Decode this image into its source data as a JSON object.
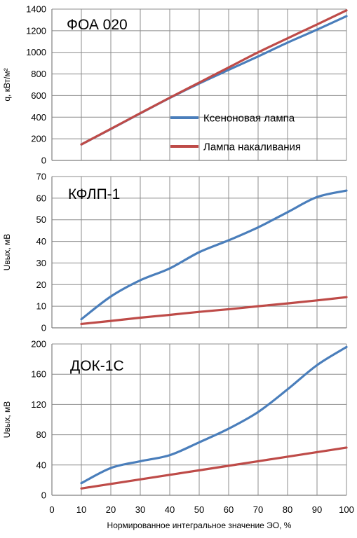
{
  "x_axis_label": "Нормированное интегральное значение ЭО, %",
  "x_ticks": [
    "0",
    "10",
    "20",
    "30",
    "40",
    "50",
    "60",
    "70",
    "80",
    "90",
    "100"
  ],
  "legend": {
    "placement": "inside-top-panel-lower-right",
    "items": [
      {
        "label": "Ксеноновая лампа",
        "color": "#4a7ebb"
      },
      {
        "label": "Лампа накаливания",
        "color": "#be4b48"
      }
    ]
  },
  "chart_data": [
    {
      "type": "line",
      "title": "ФОА 020",
      "xlabel": "Нормированное интегральное значение ЭО, %",
      "ylabel": "q, кВт/м²",
      "xlim": [
        0,
        100
      ],
      "ylim": [
        0,
        1400
      ],
      "yticks": [
        "0",
        "200",
        "400",
        "600",
        "800",
        "1000",
        "1200",
        "1400"
      ],
      "grid": true,
      "series": [
        {
          "name": "Ксеноновая лампа",
          "color": "#4a7ebb",
          "x": [
            10,
            20,
            30,
            40,
            50,
            60,
            70,
            80,
            90,
            100
          ],
          "y": [
            148,
            290,
            435,
            578,
            712,
            838,
            962,
            1090,
            1210,
            1335
          ]
        },
        {
          "name": "Лампа накаливания",
          "color": "#be4b48",
          "x": [
            10,
            20,
            30,
            40,
            50,
            60,
            70,
            80,
            90,
            100
          ],
          "y": [
            148,
            292,
            437,
            580,
            720,
            860,
            1000,
            1130,
            1258,
            1388
          ]
        }
      ]
    },
    {
      "type": "line",
      "title": "КФЛП-1",
      "xlabel": "Нормированное интегральное значение ЭО, %",
      "ylabel": "Uвых, мВ",
      "xlim": [
        0,
        100
      ],
      "ylim": [
        0,
        70
      ],
      "yticks": [
        "0",
        "10",
        "20",
        "30",
        "40",
        "50",
        "60",
        "70"
      ],
      "grid": true,
      "series": [
        {
          "name": "Ксеноновая лампа",
          "color": "#4a7ebb",
          "x": [
            10,
            20,
            30,
            40,
            50,
            60,
            70,
            80,
            90,
            100
          ],
          "y": [
            4,
            14.5,
            22,
            27.5,
            35,
            40.5,
            46.5,
            53.5,
            60.5,
            63.5
          ]
        },
        {
          "name": "Лампа накаливания",
          "color": "#be4b48",
          "x": [
            10,
            20,
            30,
            40,
            50,
            60,
            70,
            80,
            90,
            100
          ],
          "y": [
            1.8,
            3.2,
            4.7,
            6,
            7.4,
            8.6,
            10,
            11.3,
            12.7,
            14.2
          ]
        }
      ]
    },
    {
      "type": "line",
      "title": "ДОК-1С",
      "xlabel": "Нормированное интегральное значение ЭО, %",
      "ylabel": "Uвых, мВ",
      "xlim": [
        0,
        100
      ],
      "ylim": [
        0,
        200
      ],
      "yticks": [
        "0",
        "40",
        "80",
        "120",
        "160",
        "200"
      ],
      "grid": true,
      "series": [
        {
          "name": "Ксеноновая лампа",
          "color": "#4a7ebb",
          "x": [
            10,
            20,
            30,
            40,
            50,
            60,
            70,
            80,
            90,
            100
          ],
          "y": [
            16,
            36,
            45,
            53,
            70,
            88,
            110,
            140,
            172,
            196
          ]
        },
        {
          "name": "Лампа накаливания",
          "color": "#be4b48",
          "x": [
            10,
            20,
            30,
            40,
            50,
            60,
            70,
            80,
            90,
            100
          ],
          "y": [
            9,
            15,
            21,
            27,
            33,
            39,
            45,
            51,
            57,
            63
          ]
        }
      ]
    }
  ]
}
